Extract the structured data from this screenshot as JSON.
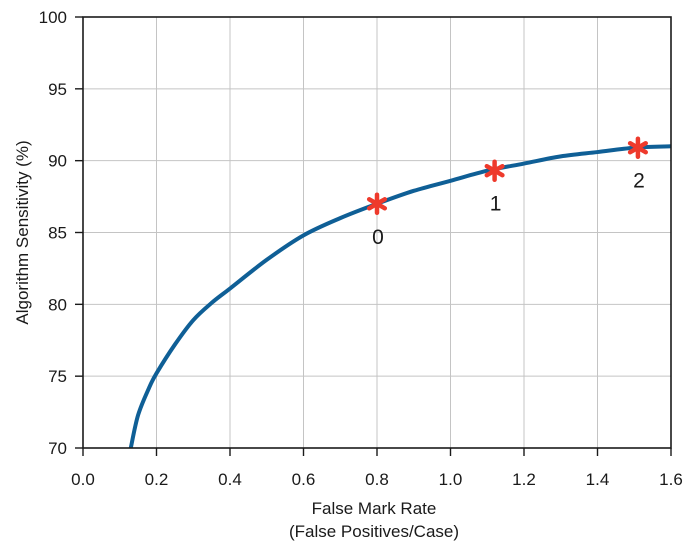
{
  "chart_data": {
    "type": "line",
    "title": "",
    "xlabel_lines": [
      "False Mark Rate",
      "(False Positives/Case)"
    ],
    "ylabel": "Algorithm Sensitivity (%)",
    "xlim": [
      0.0,
      1.6
    ],
    "ylim": [
      70,
      100
    ],
    "xticks": [
      0.0,
      0.2,
      0.4,
      0.6,
      0.8,
      1.0,
      1.2,
      1.4,
      1.6
    ],
    "yticks": [
      70,
      75,
      80,
      85,
      90,
      95,
      100
    ],
    "grid": true,
    "series": [
      {
        "color": "#0f5f96",
        "x": [
          0.13,
          0.15,
          0.18,
          0.2,
          0.25,
          0.3,
          0.35,
          0.4,
          0.5,
          0.6,
          0.7,
          0.8,
          0.9,
          1.0,
          1.1,
          1.2,
          1.3,
          1.4,
          1.5,
          1.6
        ],
        "y": [
          70.0,
          72.3,
          74.2,
          75.2,
          77.2,
          78.9,
          80.1,
          81.1,
          83.1,
          84.8,
          86.0,
          87.0,
          87.9,
          88.6,
          89.3,
          89.8,
          90.3,
          90.6,
          90.9,
          91.0
        ]
      }
    ],
    "points": [
      {
        "label": "0",
        "x": 0.8,
        "y": 87.0,
        "color": "#ee3a2c"
      },
      {
        "label": "1",
        "x": 1.12,
        "y": 89.3,
        "color": "#ee3a2c"
      },
      {
        "label": "2",
        "x": 1.51,
        "y": 90.9,
        "color": "#ee3a2c"
      }
    ]
  }
}
